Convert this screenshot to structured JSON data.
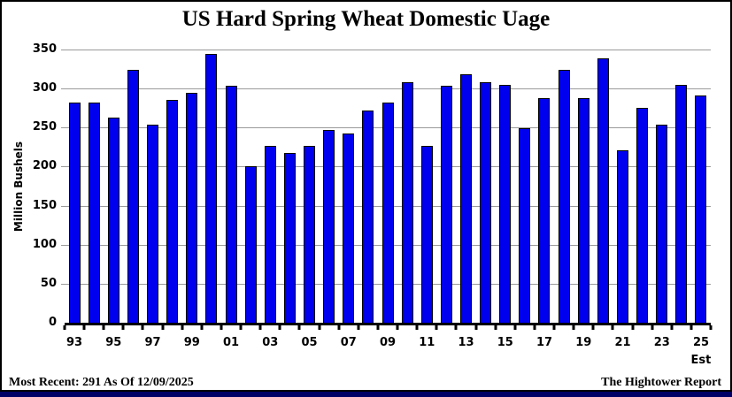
{
  "title": "US Hard Spring Wheat Domestic Uage",
  "footer": {
    "most_recent": "Most Recent: 291 As Of 12/09/2025",
    "source": "The Hightower Report"
  },
  "chart_data": {
    "type": "bar",
    "title": "US Hard Spring Wheat Domestic Uage",
    "xlabel": "",
    "ylabel": "Million Bushels",
    "ylim": [
      0,
      350
    ],
    "y_ticks": [
      0,
      50,
      100,
      150,
      200,
      250,
      300,
      350
    ],
    "grid": true,
    "bar_color": "#0000EE",
    "gridline_color": "#9a9a9a",
    "categories": [
      "93",
      "94",
      "95",
      "96",
      "97",
      "98",
      "99",
      "00",
      "01",
      "02",
      "03",
      "04",
      "05",
      "06",
      "07",
      "08",
      "09",
      "10",
      "11",
      "12",
      "13",
      "14",
      "15",
      "16",
      "17",
      "18",
      "19",
      "20",
      "21",
      "22",
      "23",
      "24",
      "25"
    ],
    "values": [
      282,
      282,
      263,
      324,
      254,
      285,
      294,
      344,
      304,
      201,
      226,
      217,
      226,
      247,
      242,
      272,
      282,
      308,
      226,
      304,
      318,
      308,
      305,
      249,
      288,
      324,
      288,
      339,
      221,
      275,
      254,
      305,
      291
    ],
    "label_every": 2,
    "est_label": "Est",
    "legend": null
  }
}
